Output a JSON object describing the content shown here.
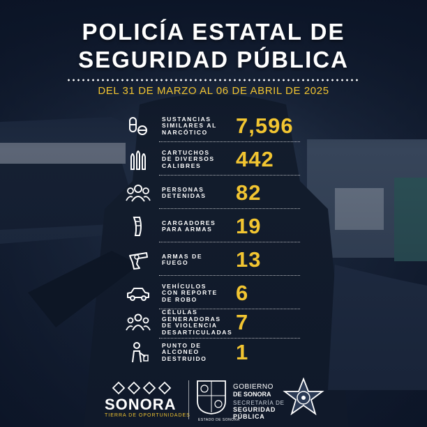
{
  "title_line1": "POLICÍA ESTATAL DE",
  "title_line2": "SEGURIDAD PÚBLICA",
  "date_range": "DEL 31 DE MARZO AL 06 DE ABRIL DE 2025",
  "colors": {
    "accent": "#f2c531",
    "background": "#1f2c42",
    "text": "#ffffff"
  },
  "stats": [
    {
      "label": "SUSTANCIAS\nSIMILARES AL\nNARCÓTICO",
      "value": "7,596",
      "icon": "pills-icon"
    },
    {
      "label": "CARTUCHOS\nDE DIVERSOS\nCALIBRES",
      "value": "442",
      "icon": "bullets-icon"
    },
    {
      "label": "PERSONAS\nDETENIDAS",
      "value": "82",
      "icon": "people-icon"
    },
    {
      "label": "CARGADORES\nPARA ARMAS",
      "value": "19",
      "icon": "magazine-icon"
    },
    {
      "label": "ARMAS DE\nFUEGO",
      "value": "13",
      "icon": "revolver-icon"
    },
    {
      "label": "VEHÍCULOS\nCON REPORTE\nDE ROBO",
      "value": "6",
      "icon": "car-icon"
    },
    {
      "label": "CÉLULAS\nGENERADORAS\nDE VIOLENCIA\nDESARTICULADAS",
      "value": "7",
      "icon": "group-icon"
    },
    {
      "label": "PUNTO DE\nALCONEO\nDESTRUIDO",
      "value": "1",
      "icon": "person-warning-icon"
    }
  ],
  "footer": {
    "sonora_brand": "SONORA",
    "sonora_tagline": "TIERRA DE OPORTUNIDADES",
    "gobierno": "GOBIERNO",
    "de_sonora": "DE SONORA",
    "secretaria": "SECRETARÍA DE",
    "seguridad": "SEGURIDAD",
    "publica": "PÚBLICA",
    "crest_caption": "ESTADO DE SONORA"
  }
}
